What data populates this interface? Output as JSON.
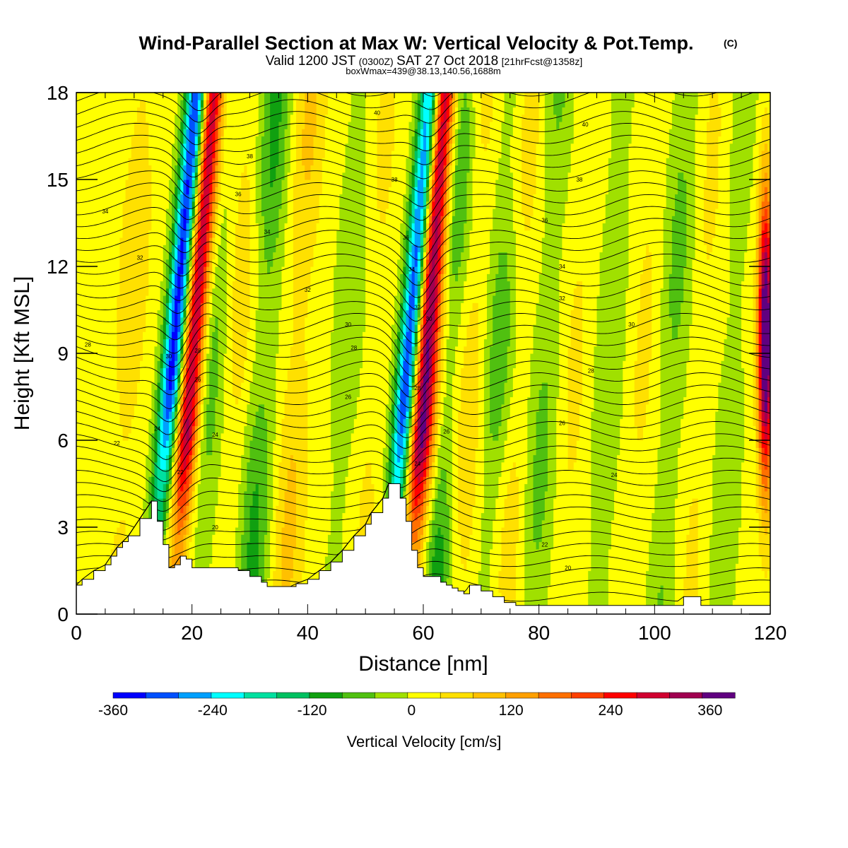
{
  "title": {
    "main": "Wind-Parallel Section at Max W: Vertical Velocity & Pot.Temp.",
    "copyright": "(C)",
    "valid_prefix": "Valid 1200 JST",
    "valid_utc": "(0300Z)",
    "valid_date": "SAT 27 Oct 2018",
    "forecast": "[21hrFcst@1358z]",
    "box_info": "boxWmax=439@38.13,140.56,1688m"
  },
  "chart_data": {
    "type": "heatmap",
    "xlabel": "Distance [nm]",
    "ylabel": "Height [Kft MSL]",
    "xlim": [
      0,
      120
    ],
    "ylim": [
      0,
      18
    ],
    "x_ticks": [
      0,
      20,
      40,
      60,
      80,
      100,
      120
    ],
    "y_ticks": [
      0,
      3,
      6,
      9,
      12,
      15,
      18
    ],
    "colorbar": {
      "label": "Vertical Velocity [cm/s]",
      "range": [
        -360,
        390
      ],
      "ticks": [
        -360,
        -240,
        -120,
        0,
        120,
        240,
        360
      ],
      "colors": [
        "#0000ff",
        "#0050ff",
        "#00a0ff",
        "#00ffff",
        "#00e0a0",
        "#00c060",
        "#10a010",
        "#50c010",
        "#a0e000",
        "#ffff00",
        "#ffe000",
        "#ffc000",
        "#ffa000",
        "#ff7000",
        "#ff4000",
        "#ff0000",
        "#d00030",
        "#a00050",
        "#600080"
      ]
    },
    "features": [
      {
        "name": "downdraft",
        "x_nm": 14,
        "w_cm_s": -360
      },
      {
        "name": "updraft",
        "x_nm": 18,
        "w_cm_s": 330
      },
      {
        "name": "downdraft",
        "x_nm": 56,
        "w_cm_s": -360
      },
      {
        "name": "updraft",
        "x_nm": 59,
        "w_cm_s": 380
      },
      {
        "name": "updraft",
        "x_nm": 119,
        "w_cm_s": 439
      }
    ],
    "terrain": {
      "x": [
        0,
        1,
        3,
        5,
        6,
        7,
        8,
        9,
        11,
        13,
        14,
        15,
        16,
        17,
        18,
        19,
        20,
        21,
        22,
        24,
        26,
        28,
        30,
        32,
        33,
        35,
        37,
        38,
        40,
        42,
        44,
        46,
        48,
        50,
        51,
        53,
        54,
        55,
        56,
        57,
        58,
        59,
        60,
        61,
        62,
        63,
        64,
        65,
        66,
        67,
        68,
        70,
        72,
        74,
        76,
        80,
        85,
        90,
        95,
        100,
        103,
        105,
        108,
        112,
        116,
        118,
        120
      ],
      "height_kft": [
        1.0,
        1.2,
        1.5,
        1.7,
        2.0,
        2.3,
        2.5,
        2.7,
        3.3,
        3.9,
        3.2,
        2.4,
        1.6,
        1.7,
        2.0,
        1.9,
        1.6,
        1.6,
        1.6,
        1.6,
        1.6,
        1.5,
        1.3,
        1.1,
        0.95,
        0.95,
        0.95,
        1.05,
        1.2,
        1.5,
        1.8,
        2.2,
        2.7,
        3.1,
        3.5,
        4.0,
        4.5,
        4.5,
        4.0,
        3.2,
        2.2,
        1.6,
        1.3,
        1.3,
        1.3,
        1.1,
        1.0,
        0.9,
        0.8,
        0.7,
        1.0,
        0.8,
        0.6,
        0.4,
        0.3,
        0.3,
        0.3,
        0.3,
        0.3,
        0.3,
        0.3,
        0.6,
        0.3,
        0.3,
        0.3,
        0.3,
        0.3
      ]
    },
    "contours": {
      "variable": "potential temperature",
      "labels": [
        {
          "x_nm": 2,
          "y_kft": 9.3,
          "text": "28"
        },
        {
          "x_nm": 7,
          "y_kft": 5.9,
          "text": "22"
        },
        {
          "x_nm": 5,
          "y_kft": 13.9,
          "text": "34"
        },
        {
          "x_nm": 11,
          "y_kft": 12.3,
          "text": "32"
        },
        {
          "x_nm": 14,
          "y_kft": 6.4,
          "text": "24"
        },
        {
          "x_nm": 16,
          "y_kft": 8.9,
          "text": "30"
        },
        {
          "x_nm": 18,
          "y_kft": 4.9,
          "text": "22"
        },
        {
          "x_nm": 21,
          "y_kft": 9.1,
          "text": "28"
        },
        {
          "x_nm": 21,
          "y_kft": 8.1,
          "text": "26"
        },
        {
          "x_nm": 24,
          "y_kft": 6.2,
          "text": "24"
        },
        {
          "x_nm": 24,
          "y_kft": 3.0,
          "text": "20"
        },
        {
          "x_nm": 28,
          "y_kft": 14.5,
          "text": "36"
        },
        {
          "x_nm": 30,
          "y_kft": 15.8,
          "text": "38"
        },
        {
          "x_nm": 33,
          "y_kft": 13.2,
          "text": "34"
        },
        {
          "x_nm": 40,
          "y_kft": 11.2,
          "text": "32"
        },
        {
          "x_nm": 47,
          "y_kft": 10.0,
          "text": "30"
        },
        {
          "x_nm": 48,
          "y_kft": 9.2,
          "text": "28"
        },
        {
          "x_nm": 47,
          "y_kft": 7.5,
          "text": "26"
        },
        {
          "x_nm": 52,
          "y_kft": 17.3,
          "text": "40"
        },
        {
          "x_nm": 55,
          "y_kft": 15.0,
          "text": "38"
        },
        {
          "x_nm": 57,
          "y_kft": 13.0,
          "text": "36"
        },
        {
          "x_nm": 58,
          "y_kft": 11.9,
          "text": "34"
        },
        {
          "x_nm": 59,
          "y_kft": 10.6,
          "text": "32"
        },
        {
          "x_nm": 61,
          "y_kft": 10.2,
          "text": "30"
        },
        {
          "x_nm": 59,
          "y_kft": 7.8,
          "text": "28"
        },
        {
          "x_nm": 64,
          "y_kft": 6.3,
          "text": "26"
        },
        {
          "x_nm": 59,
          "y_kft": 5.2,
          "text": "24"
        },
        {
          "x_nm": 88,
          "y_kft": 16.9,
          "text": "40"
        },
        {
          "x_nm": 87,
          "y_kft": 15.0,
          "text": "38"
        },
        {
          "x_nm": 81,
          "y_kft": 13.6,
          "text": "36"
        },
        {
          "x_nm": 84,
          "y_kft": 12.0,
          "text": "34"
        },
        {
          "x_nm": 84,
          "y_kft": 10.9,
          "text": "32"
        },
        {
          "x_nm": 96,
          "y_kft": 10.0,
          "text": "30"
        },
        {
          "x_nm": 89,
          "y_kft": 8.4,
          "text": "28"
        },
        {
          "x_nm": 84,
          "y_kft": 6.6,
          "text": "26"
        },
        {
          "x_nm": 93,
          "y_kft": 4.8,
          "text": "24"
        },
        {
          "x_nm": 81,
          "y_kft": 2.4,
          "text": "22"
        },
        {
          "x_nm": 85,
          "y_kft": 1.6,
          "text": "20"
        }
      ]
    }
  }
}
